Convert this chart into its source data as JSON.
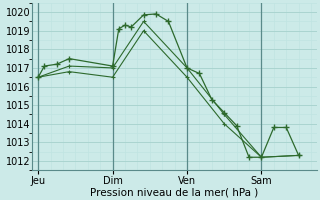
{
  "background_color": "#cceae8",
  "grid_major_color": "#aad4d0",
  "grid_minor_color": "#c0e4e2",
  "line_color": "#2d6a2d",
  "ylabel_ticks": [
    1012,
    1013,
    1014,
    1015,
    1016,
    1017,
    1018,
    1019,
    1020
  ],
  "ylim": [
    1011.5,
    1020.5
  ],
  "xlabel": "Pression niveau de la mer( hPa )",
  "day_labels": [
    "Jeu",
    "Dim",
    "Ven",
    "Sam"
  ],
  "day_positions": [
    0,
    24,
    48,
    72
  ],
  "xlim": [
    -2,
    90
  ],
  "series1": {
    "x": [
      0,
      2,
      6,
      10,
      24,
      26,
      28,
      30,
      34,
      38,
      42,
      48,
      52,
      56,
      60,
      64,
      68,
      72,
      76,
      80,
      84
    ],
    "y": [
      1016.5,
      1017.1,
      1017.2,
      1017.5,
      1017.1,
      1019.1,
      1019.3,
      1019.2,
      1019.85,
      1019.9,
      1019.5,
      1017.0,
      1016.7,
      1015.3,
      1014.6,
      1013.9,
      1012.2,
      1012.2,
      1013.8,
      1013.8,
      1012.3
    ]
  },
  "series2": {
    "x": [
      0,
      10,
      24,
      34,
      48,
      60,
      72,
      84
    ],
    "y": [
      1016.5,
      1017.1,
      1017.0,
      1019.5,
      1017.0,
      1014.5,
      1012.2,
      1012.3
    ]
  },
  "series3": {
    "x": [
      0,
      10,
      24,
      34,
      48,
      60,
      72,
      84
    ],
    "y": [
      1016.5,
      1016.8,
      1016.5,
      1019.0,
      1016.5,
      1014.0,
      1012.2,
      1012.3
    ]
  }
}
